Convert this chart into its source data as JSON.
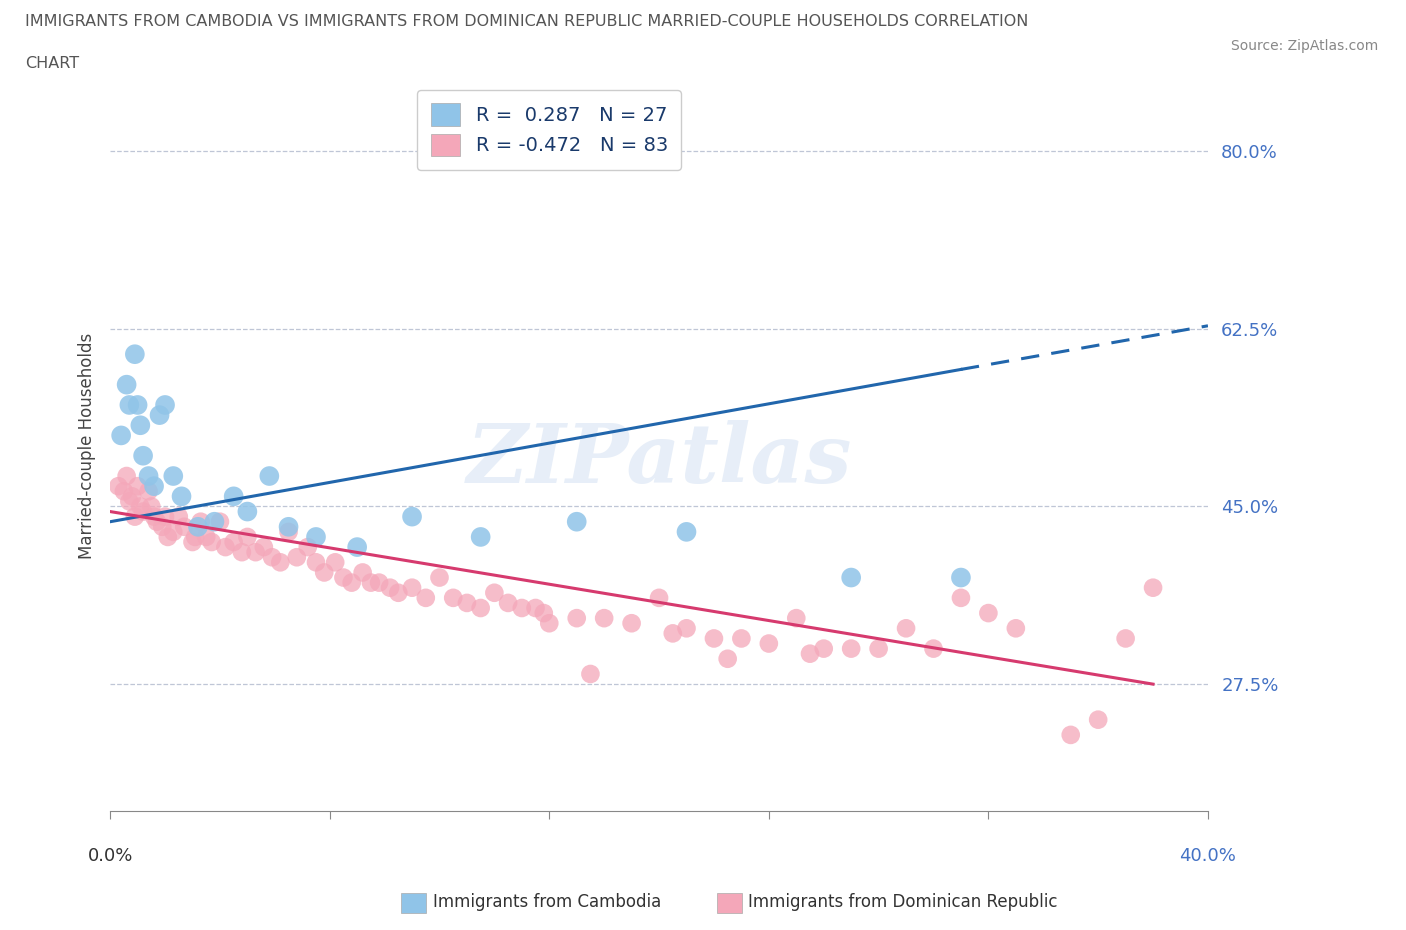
{
  "title_line1": "IMMIGRANTS FROM CAMBODIA VS IMMIGRANTS FROM DOMINICAN REPUBLIC MARRIED-COUPLE HOUSEHOLDS CORRELATION",
  "title_line2": "CHART",
  "source_text": "Source: ZipAtlas.com",
  "ylabel": "Married-couple Households",
  "xmin": 0.0,
  "xmax": 40.0,
  "ymin": 15.0,
  "ymax": 87.0,
  "yticks": [
    27.5,
    45.0,
    62.5,
    80.0
  ],
  "ytick_labels": [
    "27.5%",
    "45.0%",
    "62.5%",
    "80.0%"
  ],
  "cambodia_color": "#90c4e8",
  "cambodia_edge": "#5a9fd4",
  "dominican_color": "#f4a7b9",
  "dominican_edge": "#e06080",
  "cambodia_line_color": "#2166ac",
  "dominican_line_color": "#d63a6e",
  "R_cambodia": 0.287,
  "N_cambodia": 27,
  "R_dominican": -0.472,
  "N_dominican": 83,
  "watermark_text": "ZIPatlas",
  "cambodia_x": [
    0.4,
    0.6,
    0.7,
    0.9,
    1.0,
    1.1,
    1.2,
    1.4,
    1.6,
    1.8,
    2.0,
    2.3,
    2.6,
    3.2,
    3.8,
    4.5,
    5.0,
    5.8,
    6.5,
    7.5,
    9.0,
    11.0,
    13.5,
    17.0,
    21.0,
    27.0,
    31.0
  ],
  "cambodia_y": [
    52.0,
    57.0,
    55.0,
    60.0,
    55.0,
    53.0,
    50.0,
    48.0,
    47.0,
    54.0,
    55.0,
    48.0,
    46.0,
    43.0,
    43.5,
    46.0,
    44.5,
    48.0,
    43.0,
    42.0,
    41.0,
    44.0,
    42.0,
    43.5,
    42.5,
    38.0,
    38.0
  ],
  "dominican_x": [
    0.3,
    0.5,
    0.6,
    0.7,
    0.8,
    0.9,
    1.0,
    1.1,
    1.2,
    1.4,
    1.5,
    1.6,
    1.7,
    1.9,
    2.0,
    2.1,
    2.3,
    2.5,
    2.7,
    3.0,
    3.1,
    3.3,
    3.5,
    3.7,
    4.0,
    4.2,
    4.5,
    4.8,
    5.0,
    5.3,
    5.6,
    5.9,
    6.2,
    6.5,
    6.8,
    7.2,
    7.5,
    7.8,
    8.2,
    8.5,
    8.8,
    9.2,
    9.5,
    9.8,
    10.2,
    10.5,
    11.0,
    11.5,
    12.0,
    12.5,
    13.0,
    13.5,
    14.0,
    14.5,
    15.0,
    15.5,
    16.0,
    17.0,
    18.0,
    19.0,
    20.0,
    21.0,
    22.0,
    23.0,
    24.0,
    25.0,
    26.0,
    27.0,
    28.0,
    29.0,
    30.0,
    31.0,
    32.0,
    33.0,
    35.0,
    36.0,
    37.0,
    38.0,
    20.5,
    25.5,
    15.8,
    22.5,
    17.5
  ],
  "dominican_y": [
    47.0,
    46.5,
    48.0,
    45.5,
    46.0,
    44.0,
    47.0,
    45.0,
    44.5,
    46.5,
    45.0,
    44.0,
    43.5,
    43.0,
    44.0,
    42.0,
    42.5,
    44.0,
    43.0,
    41.5,
    42.0,
    43.5,
    42.0,
    41.5,
    43.5,
    41.0,
    41.5,
    40.5,
    42.0,
    40.5,
    41.0,
    40.0,
    39.5,
    42.5,
    40.0,
    41.0,
    39.5,
    38.5,
    39.5,
    38.0,
    37.5,
    38.5,
    37.5,
    37.5,
    37.0,
    36.5,
    37.0,
    36.0,
    38.0,
    36.0,
    35.5,
    35.0,
    36.5,
    35.5,
    35.0,
    35.0,
    33.5,
    34.0,
    34.0,
    33.5,
    36.0,
    33.0,
    32.0,
    32.0,
    31.5,
    34.0,
    31.0,
    31.0,
    31.0,
    33.0,
    31.0,
    36.0,
    34.5,
    33.0,
    22.5,
    24.0,
    32.0,
    37.0,
    32.5,
    30.5,
    34.5,
    30.0,
    28.5
  ],
  "cam_line_x0": 0.0,
  "cam_line_y0": 43.5,
  "cam_line_x1": 31.0,
  "cam_line_y1": 58.5,
  "dom_line_x0": 0.0,
  "dom_line_y0": 44.5,
  "dom_line_x1": 38.0,
  "dom_line_y1": 27.5,
  "cam_dash_x0": 31.0,
  "cam_dash_y0": 58.5,
  "cam_dash_x1": 40.0,
  "cam_dash_y1": 62.8
}
